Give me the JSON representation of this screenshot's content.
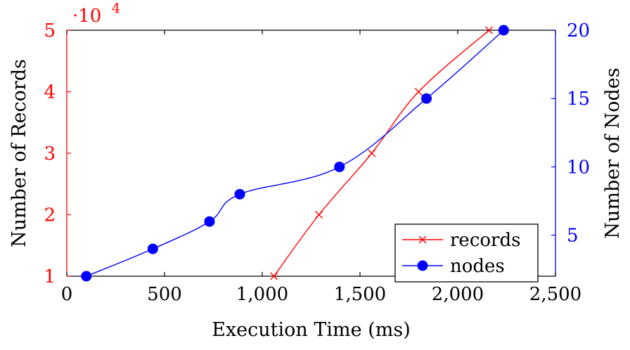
{
  "chart_data": {
    "type": "line",
    "xlabel": "Execution Time (ms)",
    "xlim": [
      0,
      2500
    ],
    "x_ticks": [
      0,
      500,
      1000,
      1500,
      2000,
      2500
    ],
    "x_tick_labels": [
      "0",
      "500",
      "1,000",
      "1,500",
      "2,000",
      "2,500"
    ],
    "grid": false,
    "legend_position": "bottom-right",
    "left_axis": {
      "label": "Number of Records",
      "color": "#ff0000",
      "lim": [
        10000,
        50000
      ],
      "ticks": [
        10000,
        20000,
        30000,
        40000,
        50000
      ],
      "tick_labels": [
        "1",
        "2",
        "3",
        "4",
        "5"
      ],
      "multiplier": "·10",
      "multiplier_exp": "4"
    },
    "right_axis": {
      "label": "Number of Nodes",
      "color": "#0000ff",
      "lim": [
        2,
        20
      ],
      "ticks": [
        5,
        10,
        15,
        20
      ],
      "tick_labels": [
        "5",
        "10",
        "15",
        "20"
      ]
    },
    "series": [
      {
        "name": "records",
        "axis": "left",
        "color": "#ff0000",
        "marker": "x",
        "smooth": true,
        "x": [
          1060,
          1290,
          1560,
          1800,
          2160
        ],
        "y": [
          10000,
          20000,
          30000,
          40000,
          50000
        ]
      },
      {
        "name": "nodes",
        "axis": "right",
        "color": "#0000ff",
        "marker": "circle",
        "smooth": true,
        "x": [
          100,
          440,
          730,
          885,
          1395,
          1840,
          2235
        ],
        "y": [
          2,
          4,
          6,
          8,
          10,
          15,
          20
        ]
      }
    ]
  }
}
